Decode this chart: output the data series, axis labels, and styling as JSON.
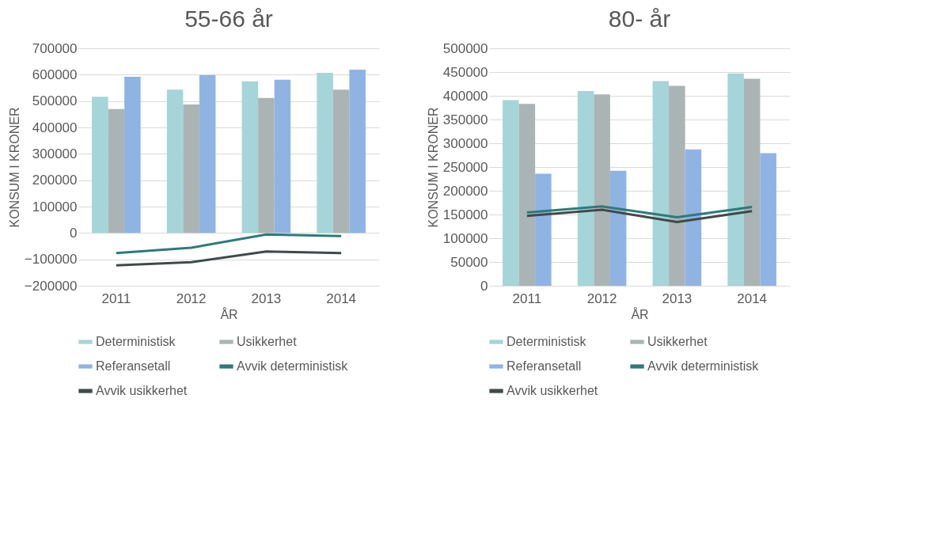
{
  "chart_data": [
    {
      "type": "bar",
      "title": "55-66 år",
      "xlabel": "ÅR",
      "ylabel": "KONSUM I KRONER",
      "categories": [
        "2011",
        "2012",
        "2013",
        "2014"
      ],
      "series": [
        {
          "name": "Deterministisk",
          "color": "#a5d5d8",
          "values": [
            516000,
            543000,
            575000,
            607000
          ]
        },
        {
          "name": "Usikkerhet",
          "color": "#aab4b4",
          "values": [
            470000,
            487000,
            512000,
            543000
          ]
        },
        {
          "name": "Referansetall",
          "color": "#8fb4e3",
          "values": [
            592000,
            598000,
            581000,
            619000
          ]
        },
        {
          "name": "Avvik deterministisk",
          "type": "line",
          "color": "#2e7a7a",
          "values": [
            -76000,
            -56000,
            -6000,
            -12000
          ]
        },
        {
          "name": "Avvik usikkerhet",
          "type": "line",
          "color": "#404a4a",
          "values": [
            -123000,
            -111000,
            -70000,
            -76000
          ]
        }
      ],
      "ylim": [
        -200000,
        700000
      ],
      "yticks": [
        -200000,
        -100000,
        0,
        100000,
        200000,
        300000,
        400000,
        500000,
        600000,
        700000
      ],
      "grid": "y",
      "legend": "bottom"
    },
    {
      "type": "bar",
      "title": "80- år",
      "xlabel": "ÅR",
      "ylabel": "KONSUM I KRONER",
      "categories": [
        "2011",
        "2012",
        "2013",
        "2014"
      ],
      "series": [
        {
          "name": "Deterministisk",
          "color": "#a5d5d8",
          "values": [
            391000,
            410000,
            431000,
            447000
          ]
        },
        {
          "name": "Usikkerhet",
          "color": "#aab4b4",
          "values": [
            383000,
            403000,
            421000,
            436000
          ]
        },
        {
          "name": "Referansetall",
          "color": "#8fb4e3",
          "values": [
            236000,
            242000,
            287000,
            279000
          ]
        },
        {
          "name": "Avvik deterministisk",
          "type": "line",
          "color": "#2e7a7a",
          "values": [
            154000,
            167000,
            144000,
            166000
          ]
        },
        {
          "name": "Avvik usikkerhet",
          "type": "line",
          "color": "#404a4a",
          "values": [
            147000,
            160000,
            134000,
            157000
          ]
        }
      ],
      "ylim": [
        0,
        500000
      ],
      "yticks": [
        0,
        50000,
        100000,
        150000,
        200000,
        250000,
        300000,
        350000,
        400000,
        450000,
        500000
      ],
      "grid": "y",
      "legend": "bottom"
    }
  ]
}
